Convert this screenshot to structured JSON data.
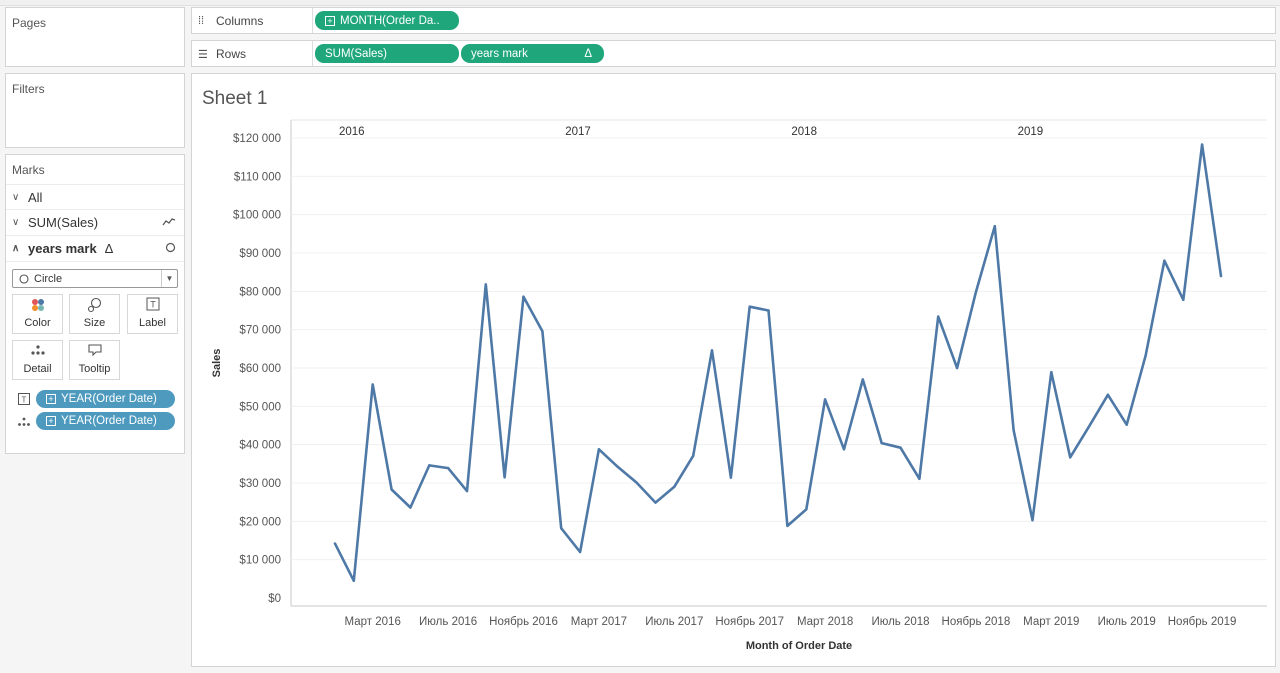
{
  "panels": {
    "pages": "Pages",
    "filters": "Filters",
    "marks": "Marks"
  },
  "marks": {
    "all": "All",
    "sum_sales": "SUM(Sales)",
    "years_mark": "years mark",
    "delta_symbol": "Δ",
    "mark_type": "Circle",
    "buttons": {
      "color": "Color",
      "size": "Size",
      "label": "Label",
      "detail": "Detail",
      "tooltip": "Tooltip"
    },
    "fields": [
      {
        "icon": "label-icon",
        "label": "YEAR(Order Date)"
      },
      {
        "icon": "detail-icon",
        "label": "YEAR(Order Date)"
      }
    ]
  },
  "shelves": {
    "columns_label": "Columns",
    "rows_label": "Rows",
    "columns_pill": "MONTH(Order Da..",
    "rows_pills": [
      "SUM(Sales)",
      "years mark"
    ],
    "rows_pill_delta": "Δ"
  },
  "sheet": {
    "title": "Sheet 1"
  },
  "colors": {
    "line": "#4e79a7",
    "green_pill": "#1fa67a",
    "blue_pill": "#4e9abf"
  },
  "chart_data": {
    "type": "line",
    "title": "",
    "xlabel": "Month of Order Date",
    "ylabel": "Sales",
    "ylim": [
      0,
      120000
    ],
    "yticks": [
      0,
      10000,
      20000,
      30000,
      40000,
      50000,
      60000,
      70000,
      80000,
      90000,
      100000,
      110000,
      120000
    ],
    "ytick_labels": [
      "$0",
      "$10 000",
      "$20 000",
      "$30 000",
      "$40 000",
      "$50 000",
      "$60 000",
      "$70 000",
      "$80 000",
      "$90 000",
      "$100 000",
      "$110 000",
      "$120 000"
    ],
    "year_labels": [
      {
        "label": "2016",
        "month_index": 0
      },
      {
        "label": "2017",
        "month_index": 12
      },
      {
        "label": "2018",
        "month_index": 24
      },
      {
        "label": "2019",
        "month_index": 36
      }
    ],
    "xtick_labels": [
      {
        "label": "Март 2016",
        "month_index": 2
      },
      {
        "label": "Июль 2016",
        "month_index": 6
      },
      {
        "label": "Ноябрь 2016",
        "month_index": 10
      },
      {
        "label": "Март 2017",
        "month_index": 14
      },
      {
        "label": "Июль 2017",
        "month_index": 18
      },
      {
        "label": "Ноябрь 2017",
        "month_index": 22
      },
      {
        "label": "Март 2018",
        "month_index": 26
      },
      {
        "label": "Июль 2018",
        "month_index": 30
      },
      {
        "label": "Ноябрь 2018",
        "month_index": 34
      },
      {
        "label": "Март 2019",
        "month_index": 38
      },
      {
        "label": "Июль 2019",
        "month_index": 42
      },
      {
        "label": "Ноябрь 2019",
        "month_index": 46
      }
    ],
    "series": [
      {
        "values": [
          14200,
          4500,
          55700,
          28300,
          23600,
          34600,
          33900,
          27900,
          81800,
          31500,
          78600,
          69600,
          18200,
          12000,
          38800,
          34200,
          30100,
          24900,
          29000,
          37100,
          64600,
          31400,
          76000,
          75000,
          18800,
          23100,
          51800,
          38800,
          57000,
          40400,
          39200,
          31100,
          73400,
          60000,
          79800,
          97000,
          43800,
          20300,
          58900,
          36700,
          44700,
          53000,
          45200,
          63200,
          88000,
          77800,
          118300,
          84000
        ]
      }
    ],
    "grid": true
  }
}
